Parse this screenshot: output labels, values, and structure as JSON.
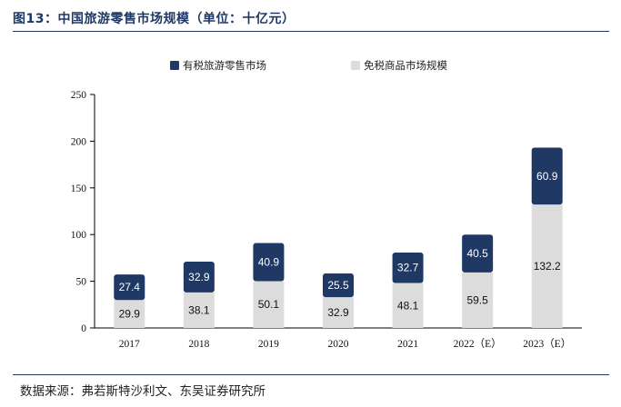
{
  "figure": {
    "title": "图13：中国旅游零售市场规模（单位：十亿元）",
    "source": "数据来源：弗若斯特沙利文、东吴证券研究所"
  },
  "colors": {
    "dutiable": "#1f3864",
    "duty_free": "#dcdcdc",
    "accent": "#1f3864"
  },
  "chart_data": {
    "type": "bar",
    "stacked": true,
    "categories": [
      "2017",
      "2018",
      "2019",
      "2020",
      "2021",
      "2022（E）",
      "2023（E）"
    ],
    "series": [
      {
        "name": "免税商品市场规模",
        "values": [
          29.9,
          38.1,
          50.1,
          32.9,
          48.1,
          59.5,
          132.2
        ]
      },
      {
        "name": "有税旅游零售市场",
        "values": [
          27.4,
          32.9,
          40.9,
          25.5,
          32.7,
          40.5,
          60.9
        ]
      }
    ],
    "legend_order": [
      "有税旅游零售市场",
      "免税商品市场规模"
    ],
    "ylim": [
      0,
      250
    ],
    "yticks": [
      0,
      50,
      100,
      150,
      200,
      250
    ],
    "grid": false,
    "legend_position": "top-center",
    "xlabel": "",
    "ylabel": ""
  }
}
